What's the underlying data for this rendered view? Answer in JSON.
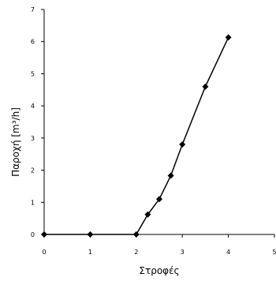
{
  "chart_data": {
    "type": "line",
    "xlabel": "Στροφές",
    "ylabel": "Παροχή [m³/h]",
    "xlim": [
      0,
      5
    ],
    "ylim": [
      0,
      7
    ],
    "x_ticks": [
      0,
      1,
      2,
      3,
      4,
      5
    ],
    "y_ticks": [
      0,
      1,
      2,
      3,
      4,
      5,
      6,
      7
    ],
    "grid": false,
    "legend": "none",
    "series": [
      {
        "x": [
          0,
          1,
          2,
          2.25,
          2.5,
          2.75,
          3,
          3.5,
          4
        ],
        "y": [
          0,
          0,
          0,
          0.62,
          1.1,
          1.83,
          2.8,
          4.6,
          6.13
        ]
      }
    ],
    "colors": {
      "line": "#000000",
      "marker": "#000000",
      "axis": "#000000"
    }
  }
}
